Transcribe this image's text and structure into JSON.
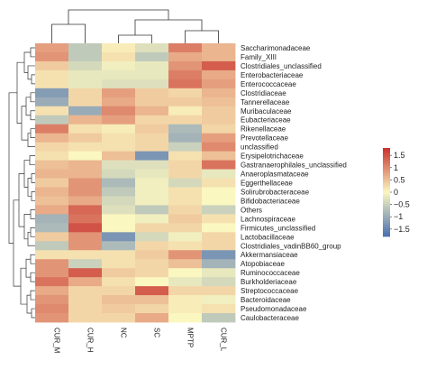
{
  "chart_data": {
    "type": "heatmap",
    "columns": [
      "CUR_M",
      "CUR_H",
      "NC",
      "SC",
      "MPTP",
      "CUR_L"
    ],
    "rows": [
      "Saccharimonadaceae",
      "Family_XIII",
      "Clostridiales_unclassified",
      "Enterobacteriaceae",
      "Enterococcaceae",
      "Clostridiaceae",
      "Tannerellaceae",
      "Muribaculaceae",
      "Eubacteriaceae",
      "Rikenellaceae",
      "Prevotellaceae",
      "unclassified",
      "Erysipelotrichaceae",
      "Gastranaerophilales_unclassified",
      "Anaeroplasmataceae",
      "Eggerthellaceae",
      "Solirubrobacteraceae",
      "Bifidobacteriaceae",
      "Others",
      "Lachnospiraceae",
      "Firmicutes_unclassified",
      "Lactobacillaceae",
      "Clostridiales_vadinBB60_group",
      "Akkermansiaceae",
      "Atopobiaceae",
      "Ruminococcaceae",
      "Burkholderiaceae",
      "Streptococcaceae",
      "Bacteroidaceae",
      "Pseudomonadaceae",
      "Caulobacteraceae"
    ],
    "values": [
      [
        0.8,
        -0.6,
        0.1,
        -0.3,
        1.1,
        0.6
      ],
      [
        0.9,
        -0.6,
        0.2,
        -0.6,
        0.7,
        0.6
      ],
      [
        0.4,
        -0.4,
        -0.1,
        -0.2,
        0.9,
        1.4
      ],
      [
        0.2,
        -0.2,
        -0.2,
        -0.2,
        1.1,
        0.7
      ],
      [
        0.2,
        -0.2,
        -0.3,
        -0.3,
        1.2,
        0.8
      ],
      [
        -1.2,
        0.3,
        0.8,
        0.4,
        0.3,
        0.6
      ],
      [
        -1.0,
        0.3,
        0.7,
        0.4,
        0.4,
        0.5
      ],
      [
        0.2,
        -1.0,
        1.0,
        0.6,
        0.1,
        0.4
      ],
      [
        -0.6,
        0.6,
        0.8,
        0.3,
        0.3,
        0.4
      ],
      [
        1.1,
        0.2,
        0.1,
        0.4,
        -0.8,
        0.3
      ],
      [
        0.6,
        0.4,
        0.2,
        0.3,
        -0.9,
        0.8
      ],
      [
        0.3,
        0.2,
        0.2,
        0.3,
        -0.5,
        1.0
      ],
      [
        0.2,
        0.0,
        0.5,
        -1.3,
        0.2,
        0.5
      ],
      [
        0.5,
        0.6,
        -0.3,
        -0.3,
        0.3,
        1.2
      ],
      [
        0.6,
        0.6,
        -0.4,
        -0.2,
        0.3,
        -0.2
      ],
      [
        0.4,
        0.9,
        -0.8,
        -0.1,
        -0.4,
        0.2
      ],
      [
        0.6,
        0.9,
        -0.6,
        -0.1,
        0.2,
        0.0
      ],
      [
        0.5,
        0.7,
        -0.4,
        -0.1,
        0.2,
        0.0
      ],
      [
        0.7,
        1.3,
        -0.3,
        -0.6,
        0.3,
        -0.5
      ],
      [
        -0.9,
        1.2,
        0.0,
        -0.1,
        0.4,
        0.2
      ],
      [
        -0.8,
        1.5,
        0.0,
        0.3,
        0.3,
        0.0
      ],
      [
        0.4,
        0.9,
        -1.3,
        -0.4,
        -0.1,
        0.3
      ],
      [
        -0.6,
        0.9,
        -0.8,
        0.3,
        0.2,
        0.3
      ],
      [
        0.2,
        0.2,
        0.2,
        0.4,
        0.9,
        -1.3
      ],
      [
        0.9,
        -0.5,
        0.2,
        0.3,
        0.5,
        -0.9
      ],
      [
        0.9,
        1.4,
        0.4,
        0.3,
        0.0,
        -0.2
      ],
      [
        1.2,
        0.7,
        0.2,
        0.0,
        -0.2,
        -0.4
      ],
      [
        0.7,
        0.3,
        0.3,
        1.4,
        0.3,
        0.3
      ],
      [
        0.9,
        0.3,
        0.5,
        0.5,
        0.1,
        -0.1
      ],
      [
        1.0,
        0.3,
        0.4,
        0.3,
        0.1,
        0.2
      ],
      [
        0.9,
        0.3,
        0.3,
        0.7,
        0.0,
        -0.6
      ]
    ],
    "color_scale": {
      "min": -1.8,
      "max": 1.8,
      "low": "#4a6fb0",
      "mid": "#fbf7c0",
      "high": "#c9312d"
    },
    "legend": {
      "ticks": [
        1.5,
        1,
        0.5,
        0,
        -0.5,
        -1,
        -1.5
      ],
      "tick_labels": [
        "1.5",
        "1",
        "0.5",
        "0",
        "−0.5",
        "−1",
        "−1.5"
      ],
      "placement": "right"
    },
    "dendrograms": {
      "columns": true,
      "rows": true
    }
  }
}
